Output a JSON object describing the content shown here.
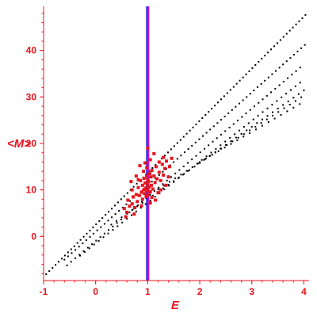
{
  "chart_data": {
    "type": "scatter",
    "title": "",
    "xlabel": "E",
    "ylabel": "<M>",
    "xlim": [
      -1.0,
      4.1
    ],
    "ylim": [
      -9.5,
      49.5
    ],
    "xticks": [
      -1,
      0,
      1,
      2,
      3,
      4
    ],
    "yticks": [
      0,
      10,
      20,
      30,
      40
    ],
    "grid": false,
    "legend": "none",
    "axis_color": "#e8141e",
    "vertical_line": {
      "x": 1.0,
      "colors": [
        "#1e1ee8",
        "#c814c8"
      ]
    },
    "series": [
      {
        "marker_color": "#000000",
        "marker_size": "small",
        "lines": [
          {
            "x0": -0.95,
            "x1": 4.05,
            "slope": 11.2,
            "intercept": 2.5,
            "step": 0.06
          },
          {
            "x0": -0.6,
            "x1": 4.05,
            "slope": 10.0,
            "intercept": 1.0,
            "step": 0.07
          },
          {
            "x0": -0.55,
            "x1": 4.0,
            "slope": 9.5,
            "intercept": -1.0,
            "step": 0.08
          },
          {
            "x0": -0.3,
            "x1": 4.0,
            "slope": 8.8,
            "intercept": -1.5,
            "step": 0.09
          },
          {
            "x0": 0.3,
            "x1": 4.0,
            "slope": 7.8,
            "intercept": 0.2,
            "step": 0.1
          },
          {
            "x0": 1.2,
            "x1": 4.0,
            "slope": 7.2,
            "intercept": 1.5,
            "step": 0.11
          },
          {
            "x0": 2.0,
            "x1": 4.0,
            "slope": 6.5,
            "intercept": 3.0,
            "step": 0.12
          }
        ]
      },
      {
        "marker_color": "#e8141e",
        "marker_size": "large",
        "points": [
          [
            0.55,
            6.0
          ],
          [
            0.6,
            5.2
          ],
          [
            0.65,
            6.5
          ],
          [
            0.7,
            7.0
          ],
          [
            0.72,
            8.5
          ],
          [
            0.75,
            6.2
          ],
          [
            0.78,
            9.0
          ],
          [
            0.8,
            7.5
          ],
          [
            0.82,
            10.5
          ],
          [
            0.84,
            8.8
          ],
          [
            0.86,
            12.0
          ],
          [
            0.88,
            9.5
          ],
          [
            0.9,
            11.0
          ],
          [
            0.9,
            8.0
          ],
          [
            0.92,
            10.0
          ],
          [
            0.93,
            12.5
          ],
          [
            0.94,
            9.2
          ],
          [
            0.95,
            11.5
          ],
          [
            0.96,
            10.4
          ],
          [
            0.97,
            8.6
          ],
          [
            0.98,
            13.0
          ],
          [
            0.98,
            9.8
          ],
          [
            0.99,
            11.2
          ],
          [
            1.0,
            10.0
          ],
          [
            1.0,
            12.2
          ],
          [
            1.01,
            9.0
          ],
          [
            1.02,
            11.8
          ],
          [
            1.03,
            10.6
          ],
          [
            1.04,
            13.5
          ],
          [
            1.05,
            9.6
          ],
          [
            1.06,
            12.8
          ],
          [
            1.07,
            11.0
          ],
          [
            1.08,
            14.2
          ],
          [
            1.1,
            10.2
          ],
          [
            1.12,
            13.0
          ],
          [
            1.14,
            11.6
          ],
          [
            1.16,
            15.0
          ],
          [
            1.18,
            12.4
          ],
          [
            1.2,
            9.4
          ],
          [
            1.22,
            13.8
          ],
          [
            1.25,
            12.0
          ],
          [
            1.28,
            15.5
          ],
          [
            1.3,
            13.2
          ],
          [
            1.33,
            14.6
          ],
          [
            1.36,
            16.2
          ],
          [
            1.4,
            12.8
          ],
          [
            1.42,
            15.0
          ],
          [
            1.46,
            16.8
          ],
          [
            1.0,
            19.0
          ],
          [
            1.12,
            17.8
          ],
          [
            1.05,
            16.5
          ],
          [
            0.92,
            14.0
          ],
          [
            0.85,
            15.2
          ],
          [
            0.78,
            13.0
          ],
          [
            0.7,
            10.0
          ],
          [
            0.68,
            11.8
          ],
          [
            0.62,
            7.8
          ],
          [
            0.58,
            4.2
          ],
          [
            0.74,
            4.8
          ],
          [
            1.15,
            7.8
          ],
          [
            1.25,
            10.0
          ],
          [
            1.35,
            11.0
          ],
          [
            0.88,
            6.6
          ],
          [
            1.05,
            7.2
          ],
          [
            0.95,
            15.8
          ],
          [
            1.3,
            17.0
          ],
          [
            1.22,
            16.0
          ],
          [
            0.82,
            12.2
          ],
          [
            0.98,
            14.8
          ],
          [
            1.08,
            8.4
          ]
        ]
      }
    ]
  }
}
